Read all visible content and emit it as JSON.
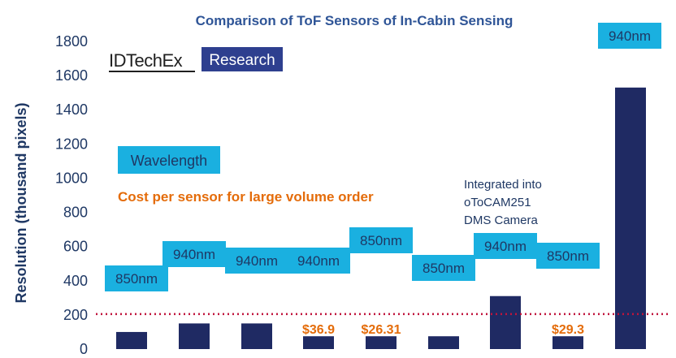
{
  "chart_data": {
    "type": "bar",
    "title": "Comparison  of ToF Sensors of In-Cabin Sensing",
    "ylabel": "Resolution (thousand pixels)",
    "ylim": [
      0,
      1800
    ],
    "yticks": [
      0,
      200,
      400,
      600,
      800,
      1000,
      1200,
      1400,
      1600,
      1800
    ],
    "values": [
      100,
      150,
      150,
      75,
      75,
      75,
      310,
      75,
      1530
    ],
    "wavelengths": [
      "850nm",
      "940nm",
      "940nm",
      "940nm",
      "850nm",
      "850nm",
      "940nm",
      "850nm",
      "940nm"
    ],
    "costs": [
      "",
      "",
      "",
      "$36.9",
      "$26.31",
      "",
      "",
      "$29.3",
      ""
    ],
    "reference_line": 205,
    "legend": {
      "wavelength": "Wavelength",
      "cost": "Cost per sensor for large volume order"
    },
    "annotation": [
      "Integrated into",
      "oToCAM251",
      "DMS Camera"
    ],
    "grid": false
  },
  "logo": {
    "part1": "IDTechEx",
    "part2": "Research"
  },
  "colors": {
    "bar": "#1f2a63",
    "label_box": "#1ab0e0",
    "cost": "#e46c0a",
    "reference_line": "#c0143c",
    "title": "#2f5597",
    "axis_text": "#1f3864"
  }
}
